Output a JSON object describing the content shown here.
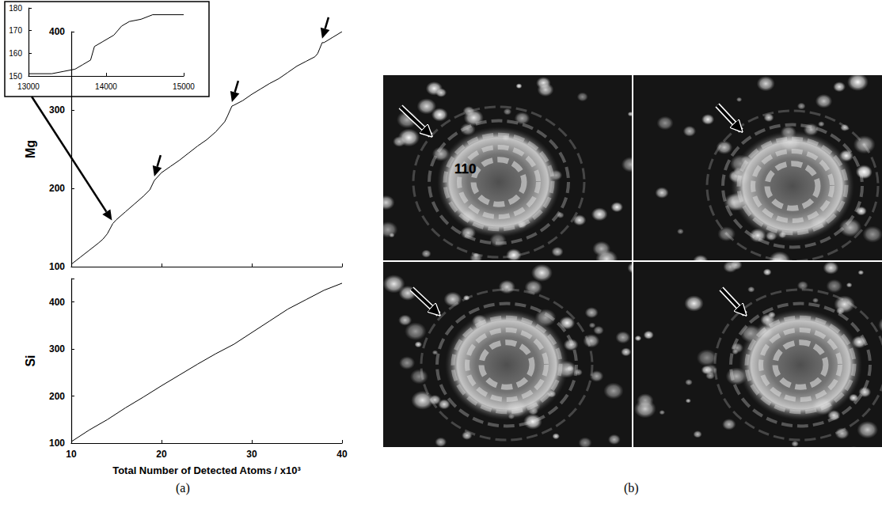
{
  "chart_data": [
    {
      "type": "line",
      "color": "#000000",
      "grid": false,
      "x": [
        13000,
        13300,
        13450,
        13600,
        13700,
        13800,
        13850,
        13950,
        14000,
        14100,
        14200,
        14300,
        14450,
        14600,
        15000
      ],
      "values": [
        151,
        151,
        152,
        153,
        155,
        157,
        163,
        165,
        166,
        168,
        172,
        174,
        175,
        177,
        177
      ],
      "xlim": [
        13000,
        15000
      ],
      "xticks": [
        13000,
        14000,
        15000
      ],
      "ylim": [
        150,
        180
      ],
      "yticks": [
        150,
        160,
        170,
        180
      ]
    },
    {
      "type": "line",
      "color": "#000000",
      "grid": false,
      "ylabel": "Mg",
      "tick_labels": "y",
      "x": [
        10,
        11,
        12,
        13,
        13.5,
        14,
        14.6,
        15,
        16,
        17,
        18,
        18.7,
        19.2,
        20,
        21,
        22,
        23,
        24,
        25,
        26,
        27,
        27.3,
        27.8,
        28,
        29,
        30,
        31,
        32,
        33,
        34,
        35,
        36,
        37,
        37.3,
        37.8,
        38,
        39,
        40
      ],
      "values": [
        103,
        112,
        121,
        130,
        135,
        142,
        155,
        160,
        170,
        180,
        190,
        198,
        210,
        220,
        228,
        236,
        245,
        254,
        262,
        272,
        285,
        292,
        305,
        306,
        312,
        320,
        327,
        334,
        340,
        348,
        356,
        362,
        368,
        372,
        386,
        386,
        393,
        400
      ],
      "xlim": [
        10,
        40
      ],
      "xticks": [
        10,
        20,
        30,
        40
      ],
      "ylim": [
        100,
        400
      ],
      "yticks": [
        100,
        200,
        300,
        400
      ],
      "arrows": [
        {
          "x": 14.6,
          "y": 155
        },
        {
          "x": 19.2,
          "y": 210
        },
        {
          "x": 27.8,
          "y": 305
        },
        {
          "x": 37.8,
          "y": 386
        }
      ]
    },
    {
      "type": "line",
      "color": "#000000",
      "grid": false,
      "ylabel": "Si",
      "xlabel": "Total Number of Detected Atoms / x10³",
      "x": [
        10,
        12,
        14,
        16,
        18,
        20,
        22,
        24,
        26,
        28,
        30,
        32,
        34,
        36,
        38,
        40
      ],
      "values": [
        103,
        128,
        150,
        175,
        198,
        222,
        245,
        268,
        290,
        310,
        335,
        360,
        385,
        405,
        425,
        440
      ],
      "xlim": [
        10,
        40
      ],
      "xticks": [
        10,
        20,
        30,
        40
      ],
      "ylim": [
        100,
        450
      ],
      "yticks": [
        100,
        200,
        300,
        400
      ]
    }
  ],
  "panel_b": {
    "label": "110",
    "images": 4
  },
  "captions": [
    "(a)",
    "(b)"
  ]
}
